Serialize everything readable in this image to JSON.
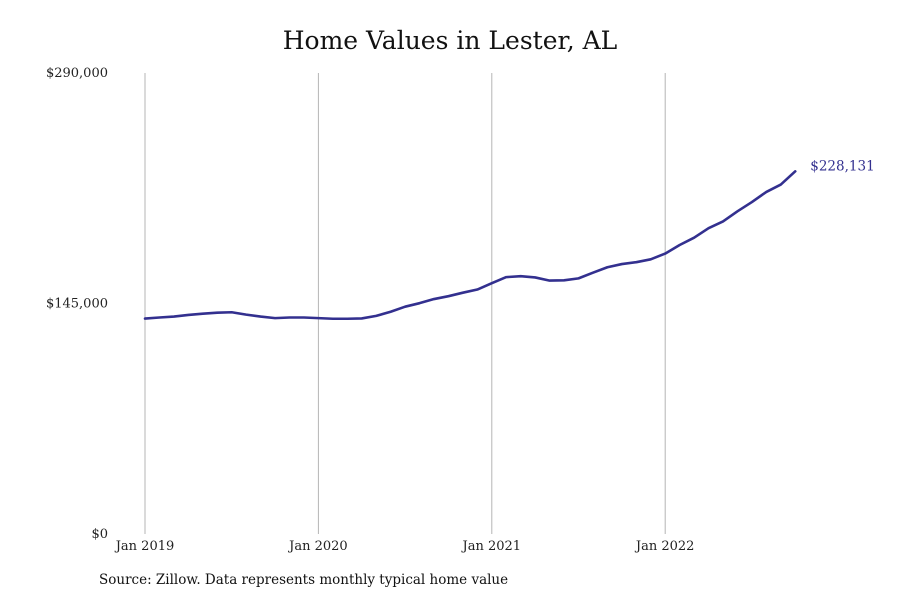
{
  "chart_data": {
    "type": "line",
    "title": "Home Values in Lester, AL",
    "xlabel": "",
    "ylabel": "",
    "ylim": [
      0,
      290000
    ],
    "y_ticks": [
      {
        "value": 0,
        "label": "$0"
      },
      {
        "value": 145000,
        "label": "$145,000"
      },
      {
        "value": 290000,
        "label": "$290,000"
      }
    ],
    "x_ticks": [
      {
        "value": "2019-01",
        "label": "Jan 2019"
      },
      {
        "value": "2020-01",
        "label": "Jan 2020"
      },
      {
        "value": "2021-01",
        "label": "Jan 2021"
      },
      {
        "value": "2022-01",
        "label": "Jan 2022"
      }
    ],
    "grid": "vertical lines at year ticks",
    "line_color": "#33308f",
    "series": [
      {
        "x": [
          "2019-01",
          "2019-02",
          "2019-03",
          "2019-04",
          "2019-05",
          "2019-06",
          "2019-07",
          "2019-08",
          "2019-09",
          "2019-10",
          "2019-11",
          "2019-12",
          "2020-01",
          "2020-02",
          "2020-03",
          "2020-04",
          "2020-05",
          "2020-06",
          "2020-07",
          "2020-08",
          "2020-09",
          "2020-10",
          "2020-11",
          "2020-12",
          "2021-01",
          "2021-02",
          "2021-03",
          "2021-04",
          "2021-05",
          "2021-06",
          "2021-07",
          "2021-08",
          "2021-09",
          "2021-10",
          "2021-11",
          "2021-12",
          "2022-01",
          "2022-02",
          "2022-03",
          "2022-04",
          "2022-05",
          "2022-06",
          "2022-07",
          "2022-08",
          "2022-09",
          "2022-10"
        ],
        "values": [
          135500,
          136200,
          136800,
          137800,
          138600,
          139200,
          139500,
          138000,
          136800,
          135800,
          136200,
          136200,
          135800,
          135400,
          135400,
          135600,
          137200,
          139800,
          143000,
          145200,
          147800,
          149600,
          151800,
          153800,
          157800,
          161600,
          162200,
          161400,
          159400,
          159600,
          160800,
          164400,
          167800,
          169800,
          171000,
          172800,
          176400,
          181800,
          186400,
          192400,
          196600,
          203000,
          208800,
          215200,
          219800,
          228131
        ]
      }
    ],
    "end_label": "$228,131",
    "source": "Source: Zillow. Data represents monthly typical home value"
  }
}
